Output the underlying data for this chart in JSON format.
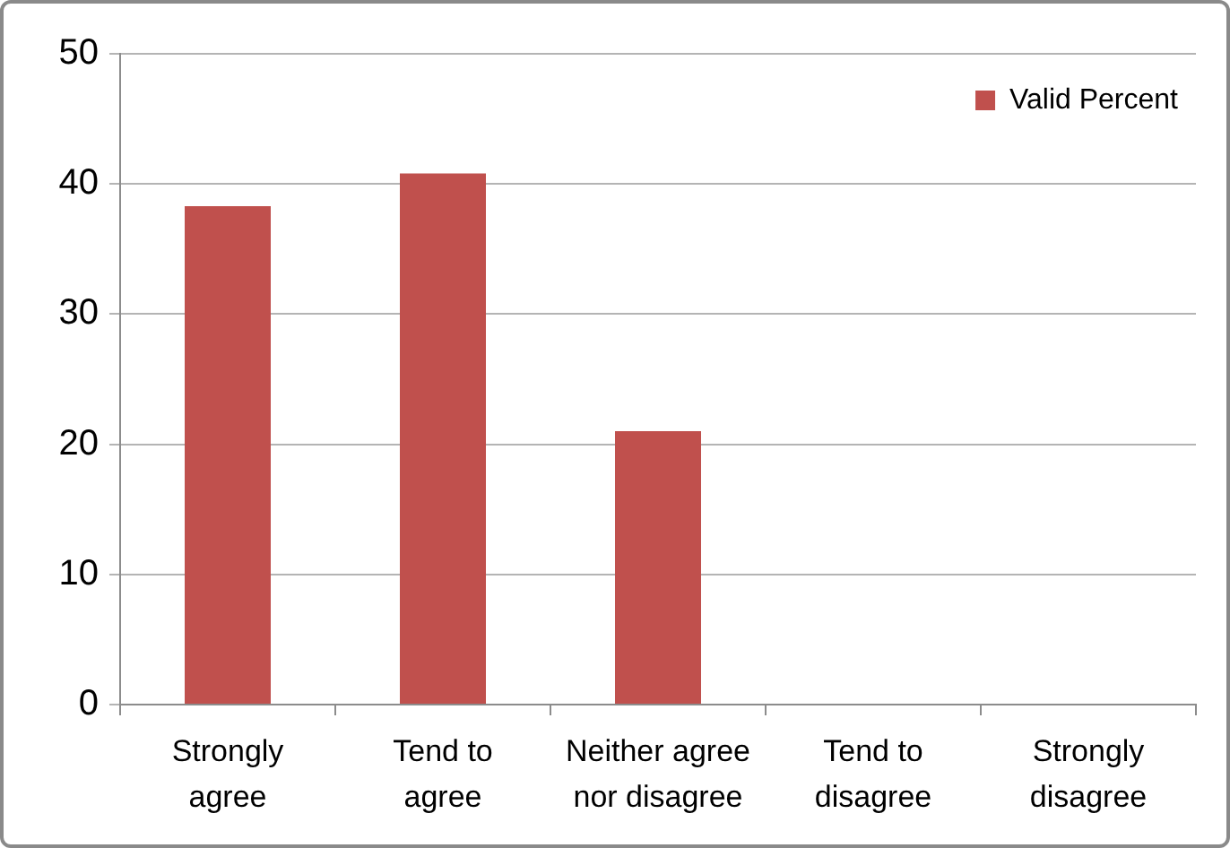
{
  "chart_data": {
    "type": "bar",
    "categories": [
      "Strongly agree",
      "Tend to agree",
      "Neither agree nor disagree",
      "Tend to disagree",
      "Strongly disagree"
    ],
    "series": [
      {
        "name": "Valid Percent",
        "color": "#c0504d",
        "values": [
          38.3,
          40.8,
          21.0,
          0,
          0
        ]
      }
    ],
    "ylim": [
      0,
      50
    ],
    "yticks": [
      0,
      10,
      20,
      30,
      40,
      50
    ],
    "grid": "y",
    "legend": "top right"
  }
}
